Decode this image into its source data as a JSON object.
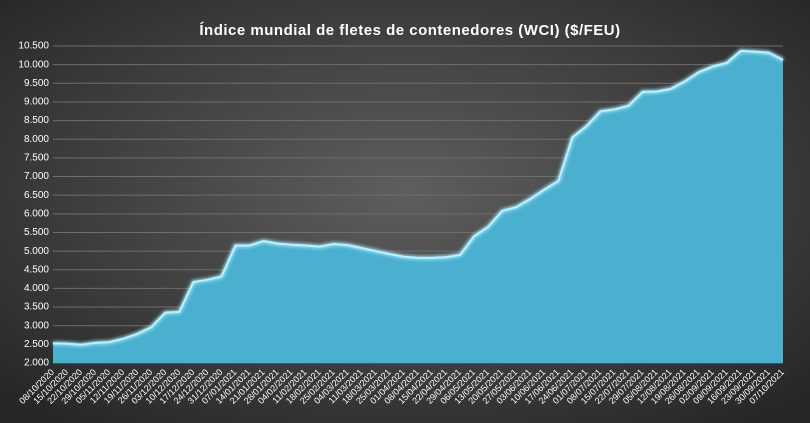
{
  "chart_data": {
    "type": "area",
    "title": "Índice mundial de fletes de contenedores (WCI) ($/FEU)",
    "categories": [
      "08/10/2020",
      "15/10/2020",
      "22/10/2020",
      "29/10/2020",
      "05/11/2020",
      "12/11/2020",
      "19/11/2020",
      "26/11/2020",
      "03/12/2020",
      "10/12/2020",
      "17/12/2020",
      "24/12/2020",
      "31/12/2020",
      "07/01/2021",
      "14/01/2021",
      "21/01/2021",
      "28/01/2021",
      "04/02/2021",
      "11/02/2021",
      "18/02/2021",
      "25/02/2021",
      "04/03/2021",
      "11/03/2021",
      "18/03/2021",
      "25/03/2021",
      "01/04/2021",
      "08/04/2021",
      "15/04/2021",
      "22/04/2021",
      "29/04/2021",
      "06/05/2021",
      "13/05/2021",
      "20/05/2021",
      "27/05/2021",
      "03/06/2021",
      "10/06/2021",
      "17/06/2021",
      "24/06/2021",
      "01/07/2021",
      "08/07/2021",
      "15/07/2021",
      "22/07/2021",
      "29/07/2021",
      "05/08/2021",
      "12/08/2021",
      "19/08/2021",
      "26/08/2021",
      "02/09/2021",
      "09/09/2021",
      "16/09/2021",
      "23/09/2021",
      "30/09/2021",
      "07/10/2021"
    ],
    "values": [
      2530,
      2520,
      2490,
      2540,
      2560,
      2650,
      2780,
      2960,
      3350,
      3370,
      4170,
      4230,
      4320,
      5150,
      5150,
      5270,
      5200,
      5170,
      5150,
      5120,
      5190,
      5160,
      5080,
      5000,
      4920,
      4850,
      4820,
      4820,
      4840,
      4900,
      5400,
      5650,
      6080,
      6180,
      6400,
      6650,
      6880,
      8050,
      8350,
      8750,
      8800,
      8900,
      9270,
      9280,
      9350,
      9550,
      9800,
      9950,
      10050,
      10370,
      10350,
      10320,
      10130
    ],
    "color": "#4bb0d0",
    "ylim": [
      2000,
      10500
    ],
    "yticks": [
      {
        "value": 2000,
        "label": "2.000"
      },
      {
        "value": 2500,
        "label": "2.500"
      },
      {
        "value": 3000,
        "label": "3.000"
      },
      {
        "value": 3500,
        "label": "3.500"
      },
      {
        "value": 4000,
        "label": "4.000"
      },
      {
        "value": 4500,
        "label": "4.500"
      },
      {
        "value": 5000,
        "label": "5.000"
      },
      {
        "value": 5500,
        "label": "5.500"
      },
      {
        "value": 6000,
        "label": "6.000"
      },
      {
        "value": 6500,
        "label": "6.500"
      },
      {
        "value": 7000,
        "label": "7.000"
      },
      {
        "value": 7500,
        "label": "7.500"
      },
      {
        "value": 8000,
        "label": "8.000"
      },
      {
        "value": 8500,
        "label": "8.500"
      },
      {
        "value": 9000,
        "label": "9.000"
      },
      {
        "value": 9500,
        "label": "9.500"
      },
      {
        "value": 10000,
        "label": "10.000"
      },
      {
        "value": 10500,
        "label": "10.500"
      }
    ],
    "grid": true
  }
}
